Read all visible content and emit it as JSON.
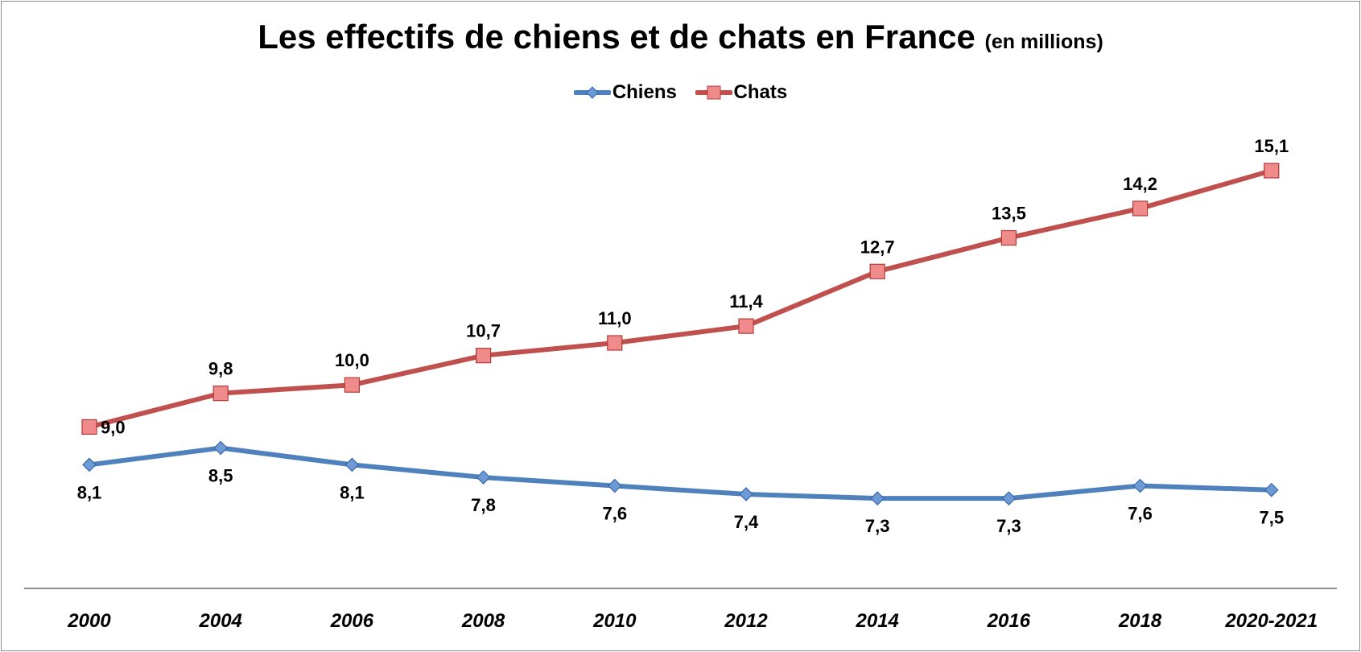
{
  "chart_data": {
    "type": "line",
    "title": "Les effectifs de chiens et de chats en France",
    "subtitle": "(en millions)",
    "categories": [
      "2000",
      "2004",
      "2006",
      "2008",
      "2010",
      "2012",
      "2014",
      "2016",
      "2018",
      "2020-2021"
    ],
    "series": [
      {
        "name": "Chiens",
        "values": [
          8.1,
          8.5,
          8.1,
          7.8,
          7.6,
          7.4,
          7.3,
          7.3,
          7.6,
          7.5
        ],
        "labels": [
          "8,1",
          "8,5",
          "8,1",
          "7,8",
          "7,6",
          "7,4",
          "7,3",
          "7,3",
          "7,6",
          "7,5"
        ],
        "color": "#4f81bd",
        "marker": "diamond",
        "label_position": "below"
      },
      {
        "name": "Chats",
        "values": [
          9.0,
          9.8,
          10.0,
          10.7,
          11.0,
          11.4,
          12.7,
          13.5,
          14.2,
          15.1
        ],
        "labels": [
          "9,0",
          "9,8",
          "10,0",
          "10,7",
          "11,0",
          "11,4",
          "12,7",
          "13,5",
          "14,2",
          "15,1"
        ],
        "color": "#c0504d",
        "marker": "square",
        "label_position": "above"
      }
    ],
    "xlabel": "",
    "ylabel": "",
    "grid": false,
    "legend_position": "top-center"
  }
}
